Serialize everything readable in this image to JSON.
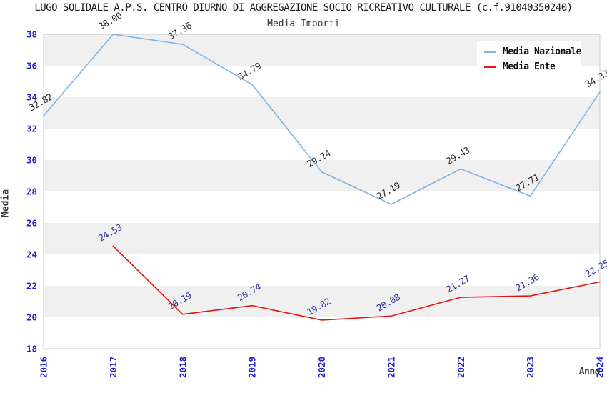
{
  "page": {
    "title": "LUGO SOLIDALE A.P.S. CENTRO DIURNO DI AGGREGAZIONE SOCIO RICREATIVO CULTURALE (c.f.91040350240)",
    "subtitle": "Media Importi"
  },
  "chart_data": {
    "type": "line",
    "title": "LUGO SOLIDALE A.P.S. CENTRO DIURNO DI AGGREGAZIONE SOCIO RICREATIVO CULTURALE (c.f.91040350240)",
    "subtitle": "Media Importi",
    "xlabel": "Anno",
    "ylabel": "Media",
    "x": [
      2016,
      2017,
      2018,
      2019,
      2020,
      2021,
      2022,
      2023,
      2024
    ],
    "ylim": [
      18,
      38
    ],
    "ytick_step": 2,
    "yticks": [
      18,
      20,
      22,
      24,
      26,
      28,
      30,
      32,
      34,
      36,
      38
    ],
    "grid": "horizontal-bands",
    "band_colors": [
      "#f0f0f0",
      "#ffffff"
    ],
    "plot_border_color": "#c9c9c9",
    "axis_tick_color": "#2323c8",
    "axis_label_color": "#3a3a3a",
    "value_label_rotation": -30,
    "legend_position": "top-right",
    "series": [
      {
        "name": "Media Nazionale",
        "color": "#7fb3e5",
        "label_color": "#2b2b2b",
        "values": [
          32.82,
          38.0,
          37.36,
          34.79,
          29.24,
          27.19,
          29.43,
          27.71,
          34.32
        ]
      },
      {
        "name": "Media Ente",
        "color": "#e41414",
        "label_color": "#333399",
        "values": [
          null,
          24.53,
          20.19,
          20.74,
          19.82,
          20.08,
          21.27,
          21.36,
          22.25
        ]
      }
    ]
  }
}
